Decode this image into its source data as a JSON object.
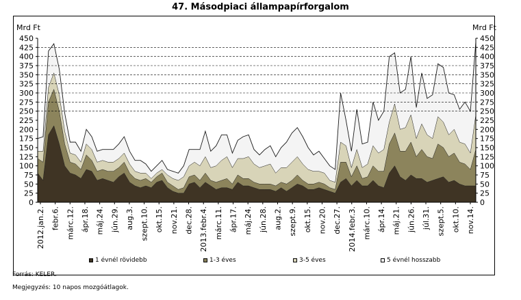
{
  "chart_data": {
    "type": "area",
    "title": "47. Másodpiaci állampapírforgalom",
    "ylabel_left": "Mrd Ft",
    "ylabel_right": "Mrd Ft",
    "ylim": [
      0,
      450
    ],
    "yticks": [
      0,
      25,
      50,
      75,
      100,
      125,
      150,
      175,
      200,
      225,
      250,
      275,
      300,
      325,
      350,
      375,
      400,
      425,
      450
    ],
    "grid": "horizontal dashed at 250-425",
    "x_tick_labels": [
      "2012.jan.2.",
      "febr.6.",
      "márc.12.",
      "ápr.18.",
      "máj.24.",
      "jún.29.",
      "aug.3.",
      "szept.10.",
      "okt.15.",
      "nov.21.",
      "dec.28.",
      "2013.febr.4.",
      "márc.11.",
      "ápr.17.",
      "máj.24.",
      "jún.28.",
      "aug.2.",
      "szept.9.",
      "okt.15.",
      "nov.20.",
      "dec.27.",
      "2014.febr.3.",
      "márc.10.",
      "ápr.14.",
      "máj.21.",
      "jún.26.",
      "júl.31.",
      "szept.5.",
      "okt.10.",
      "nov.14."
    ],
    "stacking": "stacked",
    "series": [
      {
        "name": "1 évnél rövidebb",
        "color": "#3f3424",
        "values": [
          80,
          60,
          185,
          210,
          160,
          100,
          80,
          75,
          65,
          90,
          85,
          60,
          65,
          60,
          55,
          70,
          80,
          55,
          45,
          40,
          45,
          40,
          55,
          60,
          40,
          30,
          25,
          25,
          50,
          55,
          40,
          55,
          45,
          35,
          40,
          40,
          35,
          55,
          45,
          45,
          40,
          35,
          35,
          35,
          30,
          40,
          30,
          40,
          50,
          45,
          35,
          35,
          40,
          35,
          30,
          25,
          55,
          65,
          45,
          60,
          45,
          45,
          60,
          45,
          40,
          80,
          100,
          70,
          60,
          75,
          65,
          65,
          55,
          60,
          65,
          70,
          55,
          60,
          50,
          45,
          45,
          45
        ]
      },
      {
        "name": "1-3 éves",
        "color": "#8c845c",
        "values": [
          40,
          50,
          90,
          100,
          90,
          60,
          30,
          30,
          25,
          40,
          30,
          25,
          25,
          25,
          30,
          25,
          30,
          25,
          20,
          20,
          20,
          15,
          15,
          20,
          15,
          15,
          10,
          15,
          20,
          20,
          20,
          25,
          15,
          20,
          20,
          25,
          15,
          20,
          20,
          20,
          15,
          15,
          15,
          15,
          15,
          15,
          20,
          20,
          25,
          15,
          15,
          15,
          15,
          15,
          10,
          10,
          55,
          45,
          25,
          40,
          20,
          25,
          40,
          40,
          45,
          80,
          90,
          70,
          80,
          90,
          60,
          80,
          70,
          60,
          95,
          80,
          70,
          75,
          60,
          60,
          45,
          100
        ]
      },
      {
        "name": "3-5 éves",
        "color": "#d8d4b8",
        "values": [
          20,
          30,
          40,
          45,
          45,
          35,
          25,
          25,
          20,
          30,
          30,
          25,
          25,
          25,
          25,
          25,
          25,
          25,
          20,
          20,
          15,
          10,
          10,
          10,
          20,
          20,
          25,
          30,
          30,
          35,
          40,
          45,
          35,
          45,
          55,
          60,
          45,
          45,
          55,
          60,
          50,
          45,
          50,
          55,
          35,
          40,
          45,
          50,
          50,
          45,
          40,
          35,
          30,
          30,
          20,
          20,
          55,
          45,
          25,
          45,
          30,
          35,
          55,
          50,
          60,
          60,
          80,
          60,
          65,
          75,
          50,
          70,
          60,
          55,
          75,
          70,
          60,
          65,
          55,
          55,
          45,
          95
        ]
      },
      {
        "name": "5 évnél hosszabb",
        "color": "#f4f4f4",
        "values": [
          35,
          40,
          100,
          80,
          70,
          50,
          30,
          35,
          30,
          40,
          35,
          30,
          30,
          35,
          35,
          40,
          45,
          35,
          30,
          35,
          25,
          20,
          20,
          25,
          15,
          20,
          20,
          30,
          45,
          35,
          45,
          70,
          45,
          55,
          70,
          60,
          40,
          50,
          60,
          60,
          40,
          35,
          45,
          50,
          45,
          55,
          70,
          80,
          80,
          75,
          60,
          45,
          55,
          40,
          40,
          35,
          135,
          70,
          45,
          110,
          65,
          60,
          120,
          90,
          105,
          180,
          140,
          100,
          105,
          160,
          85,
          140,
          100,
          120,
          145,
          150,
          115,
          95,
          90,
          115,
          115,
          200
        ]
      }
    ]
  },
  "legend": [
    {
      "label": "1 évnél rövidebb",
      "color": "#3f3424"
    },
    {
      "label": "1-3 éves",
      "color": "#8c845c"
    },
    {
      "label": "3-5 éves",
      "color": "#d8d4b8"
    },
    {
      "label": "5 évnél hosszabb",
      "color": "#f4f4f4"
    }
  ],
  "footer": {
    "source": "Forrás: KELER.",
    "note": "Megjegyzés: 10 napos mozgóátlagok."
  }
}
